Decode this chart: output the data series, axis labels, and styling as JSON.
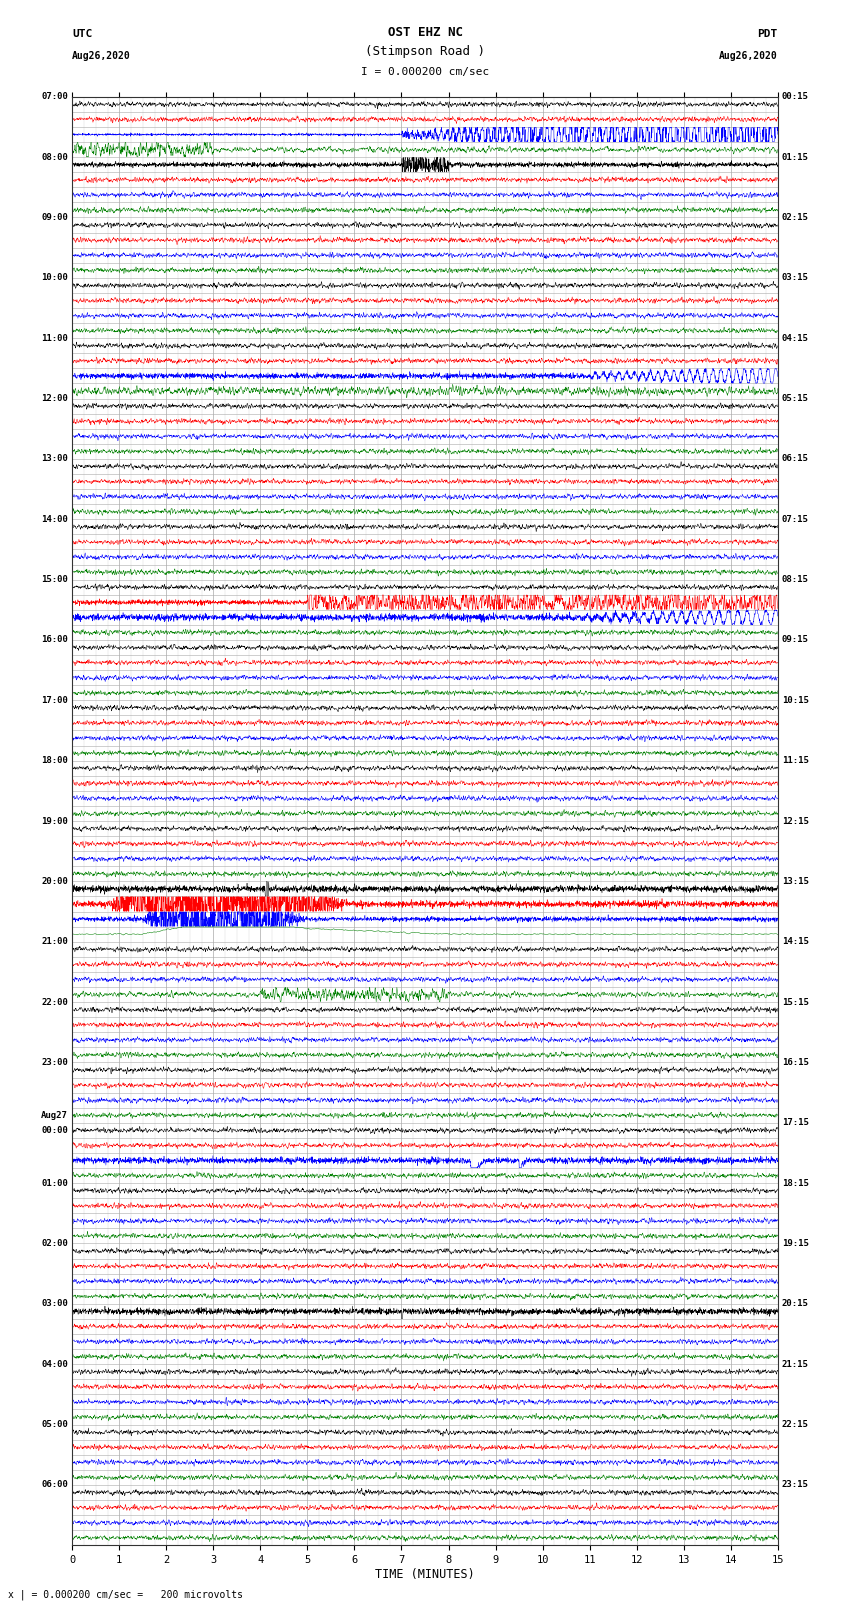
{
  "title_line1": "OST EHZ NC",
  "title_line2": "(Stimpson Road )",
  "scale_label": "I = 0.000200 cm/sec",
  "bottom_label": "x | = 0.000200 cm/sec =   200 microvolts",
  "xlabel": "TIME (MINUTES)",
  "utc_header": "UTC\nAug26,2020",
  "pdt_header": "PDT\nAug26,2020",
  "utc_labels": [
    "07:00",
    "08:00",
    "09:00",
    "10:00",
    "11:00",
    "12:00",
    "13:00",
    "14:00",
    "15:00",
    "16:00",
    "17:00",
    "18:00",
    "19:00",
    "20:00",
    "21:00",
    "22:00",
    "23:00",
    "Aug27\n00:00",
    "01:00",
    "02:00",
    "03:00",
    "04:00",
    "05:00",
    "06:00"
  ],
  "pdt_labels": [
    "00:15",
    "01:15",
    "02:15",
    "03:15",
    "04:15",
    "05:15",
    "06:15",
    "07:15",
    "08:15",
    "09:15",
    "10:15",
    "11:15",
    "12:15",
    "13:15",
    "14:15",
    "15:15",
    "16:15",
    "17:15",
    "18:15",
    "19:15",
    "20:15",
    "21:15",
    "22:15",
    "23:15"
  ],
  "n_rows": 96,
  "n_minutes": 15,
  "background_color": "#ffffff",
  "grid_color_major": "#aaaaaa",
  "grid_color_minor": "#cccccc",
  "trace_colors": [
    "black",
    "red",
    "blue",
    "green"
  ],
  "fig_width": 8.5,
  "fig_height": 16.13
}
